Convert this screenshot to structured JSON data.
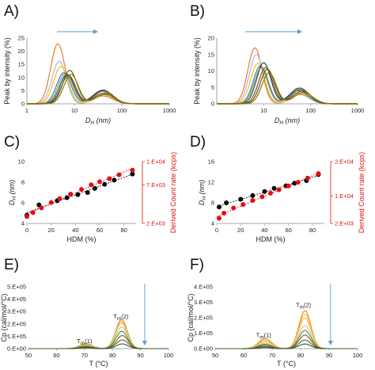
{
  "panels": {
    "A": {
      "label": "A)"
    },
    "B": {
      "label": "B)"
    },
    "C": {
      "label": "C)"
    },
    "D": {
      "label": "D)"
    },
    "E": {
      "label": "E)"
    },
    "F": {
      "label": "F)"
    }
  },
  "chart_data": [
    {
      "panel": "A",
      "type": "line",
      "xlabel": "DH (nm)",
      "xlabel_main": "D",
      "xlabel_sub": "H",
      "xlabel_unit": " (nm)",
      "ylabel": "Peak by intensity (%)",
      "xscale": "log",
      "xlim": [
        1,
        1000
      ],
      "ylim": [
        0,
        25
      ],
      "xticks": [
        1,
        10,
        100,
        1000
      ],
      "xtick_labels": [
        "1",
        "10",
        "100",
        "1000"
      ],
      "yticks": [
        0,
        5,
        10,
        15,
        20,
        25
      ],
      "ytick_labels": [
        "0",
        "5",
        "10",
        "15",
        "20",
        "25"
      ],
      "arrow": "right",
      "series": [
        {
          "color": "#ed7d31",
          "peak1": [
            4.5,
            22.8
          ],
          "peak2": [
            40,
            3.0
          ]
        },
        {
          "color": "#a9b6e0",
          "peak1": [
            4.8,
            16.2
          ],
          "peak2": [
            40,
            3.5
          ]
        },
        {
          "color": "#ffc000",
          "peak1": [
            5.2,
            14.2
          ],
          "peak2": [
            40,
            3.8
          ]
        },
        {
          "color": "#4472c4",
          "peak1": [
            6.0,
            11.8
          ],
          "peak2": [
            38,
            4.8
          ]
        },
        {
          "color": "#70ad47",
          "peak1": [
            6.5,
            11.5
          ],
          "peak2": [
            38,
            5.0
          ]
        },
        {
          "color": "#264478",
          "peak1": [
            7.0,
            11.2
          ],
          "peak2": [
            40,
            5.2
          ]
        },
        {
          "color": "#9e480e",
          "peak1": [
            7.5,
            10.8
          ],
          "peak2": [
            42,
            4.9
          ]
        },
        {
          "color": "#43682b",
          "peak1": [
            8.0,
            12.7
          ],
          "peak2": [
            42,
            4.0
          ]
        },
        {
          "color": "#997300",
          "peak1": [
            8.5,
            11.2
          ],
          "peak2": [
            45,
            3.6
          ]
        }
      ]
    },
    {
      "panel": "B",
      "type": "line",
      "xlabel": "DH (nm)",
      "xlabel_main": "D",
      "xlabel_sub": "H",
      "xlabel_unit": " (nm)",
      "ylabel": "Peak by intensity (%)",
      "xscale": "log",
      "xlim": [
        1,
        1000
      ],
      "ylim": [
        0,
        20
      ],
      "xticks": [
        10,
        100,
        1000
      ],
      "xtick_labels": [
        "10",
        "100",
        "1000"
      ],
      "yticks": [
        0,
        5,
        10,
        15,
        20
      ],
      "ytick_labels": [
        "0",
        "5",
        "10",
        "15",
        "20"
      ],
      "arrow": "right",
      "series": [
        {
          "color": "#ed7d31",
          "peak1": [
            6.5,
            17.0
          ],
          "peak2": [
            60,
            2.8
          ]
        },
        {
          "color": "#a9b6e0",
          "peak1": [
            7.0,
            15.0
          ],
          "peak2": [
            60,
            3.0
          ]
        },
        {
          "color": "#ffc000",
          "peak1": [
            7.5,
            12.3
          ],
          "peak2": [
            60,
            3.3
          ]
        },
        {
          "color": "#4472c4",
          "peak1": [
            8.5,
            11.5
          ],
          "peak2": [
            55,
            4.0
          ]
        },
        {
          "color": "#70ad47",
          "peak1": [
            9.0,
            11.0
          ],
          "peak2": [
            55,
            4.4
          ]
        },
        {
          "color": "#264478",
          "peak1": [
            10.0,
            12.5
          ],
          "peak2": [
            58,
            4.8
          ]
        },
        {
          "color": "#9e480e",
          "peak1": [
            11.0,
            11.0
          ],
          "peak2": [
            62,
            4.3
          ]
        },
        {
          "color": "#43682b",
          "peak1": [
            12.0,
            10.5
          ],
          "peak2": [
            65,
            3.8
          ]
        },
        {
          "color": "#997300",
          "peak1": [
            13.0,
            9.5
          ],
          "peak2": [
            70,
            3.4
          ]
        }
      ]
    },
    {
      "panel": "C",
      "type": "scatter",
      "xlabel": "HDM (%)",
      "ylabel": "DH (nm)",
      "ylabel_main": "D",
      "ylabel_sub": "H",
      "ylabel_unit": " (nm)",
      "y2label": "Derived Count rate (kcps)",
      "xlim": [
        0,
        90
      ],
      "ylim": [
        4,
        10
      ],
      "y2lim": [
        2000,
        10000
      ],
      "xticks": [
        0,
        20,
        40,
        60,
        80
      ],
      "xtick_labels": [
        "0",
        "20",
        "40",
        "60",
        "80"
      ],
      "yticks": [
        4,
        6,
        8,
        10
      ],
      "ytick_labels": [
        "4",
        "6",
        "8",
        "10"
      ],
      "y2ticks": [
        2000,
        7000,
        10000
      ],
      "y2tick_labels": [
        "2.E+03",
        "7.E+03",
        "1.E+04"
      ],
      "series": [
        {
          "name": "DH",
          "color": "#000000",
          "axis": "left",
          "x": [
            0,
            10,
            25,
            33,
            42,
            50,
            56,
            64,
            72,
            87
          ],
          "y": [
            4.8,
            5.8,
            6.2,
            6.5,
            6.8,
            7.0,
            7.4,
            7.8,
            8.2,
            8.8
          ]
        },
        {
          "name": "Derived Count rate",
          "color": "#e01010",
          "axis": "right",
          "x": [
            0,
            5,
            12,
            20,
            27,
            36,
            45,
            53,
            60,
            68,
            76,
            87
          ],
          "y": [
            2900,
            3400,
            4000,
            4700,
            5200,
            5800,
            6400,
            7000,
            7400,
            7800,
            8300,
            8900
          ]
        }
      ]
    },
    {
      "panel": "D",
      "type": "scatter",
      "xlabel": "HDM (%)",
      "ylabel": "DH (nm)",
      "ylabel_main": "D",
      "ylabel_sub": "H",
      "ylabel_unit": " (nm)",
      "y2label": "Derived Count rate (kcps)",
      "xlim": [
        0,
        90
      ],
      "ylim": [
        4,
        16
      ],
      "y2lim": [
        2000,
        20000
      ],
      "xticks": [
        0,
        20,
        40,
        60,
        80
      ],
      "xtick_labels": [
        "0",
        "20",
        "40",
        "60",
        "80"
      ],
      "yticks": [
        4,
        8,
        12,
        16
      ],
      "ytick_labels": [
        "4",
        "8",
        "12",
        "16"
      ],
      "y2ticks": [
        2000,
        10000,
        20000
      ],
      "y2tick_labels": [
        "2.E+03",
        "1.E+04",
        "2.E+04"
      ],
      "series": [
        {
          "name": "DH",
          "color": "#000000",
          "axis": "left",
          "x": [
            2,
            8,
            20,
            30,
            40,
            48,
            58,
            65,
            75,
            85
          ],
          "y": [
            7.2,
            8.0,
            8.7,
            9.4,
            10.2,
            10.8,
            11.3,
            11.8,
            12.3,
            13.5
          ]
        },
        {
          "name": "Derived Count rate",
          "color": "#e01010",
          "axis": "right",
          "x": [
            2,
            6,
            14,
            22,
            30,
            38,
            45,
            52,
            60,
            68,
            76,
            85
          ],
          "y": [
            3500,
            5000,
            6500,
            7500,
            8700,
            9800,
            10800,
            11800,
            12900,
            14000,
            15200,
            16500
          ]
        }
      ]
    },
    {
      "panel": "E",
      "type": "line",
      "xlabel": "T (°C)",
      "ylabel": "Cp (cal/mol/°C)",
      "xlim": [
        50,
        100
      ],
      "ylim": [
        0,
        500000
      ],
      "xticks": [
        50,
        60,
        70,
        80,
        90,
        100
      ],
      "xtick_labels": [
        "50",
        "60",
        "70",
        "80",
        "90",
        "100"
      ],
      "yticks": [
        0,
        100000,
        200000,
        300000,
        400000,
        500000
      ],
      "ytick_labels": [
        "0.E+00",
        "1.E+05",
        "2.E+05",
        "3.E+05",
        "4.E+05",
        "5.E+05"
      ],
      "annotations": [
        {
          "main": "T",
          "sub": "m",
          "suffix": "(1)",
          "at": [
            70,
            45000
          ]
        },
        {
          "main": "T",
          "sub": "m",
          "suffix": "(2)",
          "at": [
            83,
            245000
          ]
        }
      ],
      "arrow": "down",
      "series": [
        {
          "color": "#ed7d31",
          "peak1": [
            70.5,
            40000
          ],
          "peak2": [
            83.2,
            233000
          ]
        },
        {
          "color": "#ffc000",
          "peak1": [
            70.5,
            34000
          ],
          "peak2": [
            83.2,
            218000
          ]
        },
        {
          "color": "#f4b183",
          "peak1": [
            70.5,
            30000
          ],
          "peak2": [
            83.2,
            205000
          ]
        },
        {
          "color": "#a9d18e",
          "peak1": [
            70.5,
            26000
          ],
          "peak2": [
            83.3,
            175000
          ]
        },
        {
          "color": "#548235",
          "peak1": [
            70.5,
            20000
          ],
          "peak2": [
            83.3,
            140000
          ]
        },
        {
          "color": "#7f6000",
          "peak1": [
            70.5,
            14000
          ],
          "peak2": [
            83.5,
            105000
          ]
        },
        {
          "color": "#595959",
          "peak1": [
            70.5,
            10000
          ],
          "peak2": [
            83.5,
            70000
          ]
        },
        {
          "color": "#375623",
          "peak1": [
            70.5,
            6000
          ],
          "peak2": [
            83.5,
            38000
          ]
        }
      ]
    },
    {
      "panel": "F",
      "type": "line",
      "xlabel": "T (°C)",
      "ylabel": "Cp (cal/mol/°C)",
      "xlim": [
        50,
        100
      ],
      "ylim": [
        0,
        400000
      ],
      "xticks": [
        50,
        60,
        70,
        80,
        90,
        100
      ],
      "xtick_labels": [
        "50",
        "60",
        "70",
        "80",
        "90",
        "100"
      ],
      "yticks": [
        0,
        100000,
        200000,
        300000,
        400000
      ],
      "ytick_labels": [
        "0.E+00",
        "1.E+05",
        "2.E+05",
        "3.E+05",
        "4.E+05"
      ],
      "annotations": [
        {
          "main": "T",
          "sub": "m",
          "suffix": "(1)",
          "at": [
            67,
            75000
          ]
        },
        {
          "main": "T",
          "sub": "m",
          "suffix": "(2)",
          "at": [
            81,
            270000
          ]
        }
      ],
      "arrow": "down",
      "series": [
        {
          "color": "#ed7d31",
          "peak1": [
            67.5,
            65000
          ],
          "peak2": [
            81.5,
            245000
          ]
        },
        {
          "color": "#ffc000",
          "peak1": [
            67.5,
            55000
          ],
          "peak2": [
            81.5,
            222000
          ]
        },
        {
          "color": "#f4b183",
          "peak1": [
            67.5,
            47000
          ],
          "peak2": [
            81.5,
            198000
          ]
        },
        {
          "color": "#a9d18e",
          "peak1": [
            67.5,
            36000
          ],
          "peak2": [
            81.5,
            150000
          ]
        },
        {
          "color": "#548235",
          "peak1": [
            67.5,
            28000
          ],
          "peak2": [
            81.5,
            118000
          ]
        },
        {
          "color": "#7f6000",
          "peak1": [
            67.5,
            20000
          ],
          "peak2": [
            81.5,
            88000
          ]
        },
        {
          "color": "#595959",
          "peak1": [
            67.5,
            12000
          ],
          "peak2": [
            81.5,
            55000
          ]
        },
        {
          "color": "#375623",
          "peak1": [
            67.5,
            7000
          ],
          "peak2": [
            81.5,
            30000
          ]
        }
      ]
    }
  ]
}
